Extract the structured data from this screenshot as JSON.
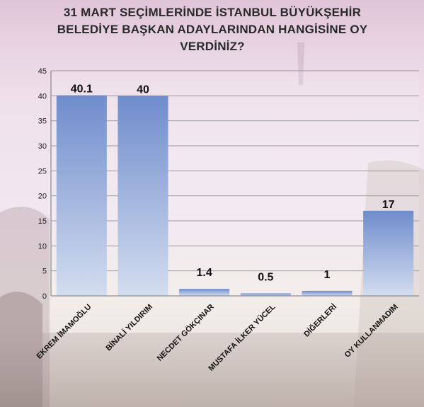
{
  "title_lines": [
    "31 MART SEÇİMLERİNDE İSTANBUL BÜYÜKŞEHİR",
    "BELEDİYE BAŞKAN ADAYLARINDAN HANGİSİNE OY",
    "VERDİNİZ?"
  ],
  "colors": {
    "bar_top": "#6f8ccc",
    "bar_bottom": "#d3ddef",
    "gridline": "#9a9a9a",
    "axis": "#777777"
  },
  "chart_data": {
    "type": "bar",
    "title": "31 MART SEÇİMLERİNDE İSTANBUL BÜYÜKŞEHİR BELEDİYE BAŞKAN ADAYLARINDAN HANGİSİNE OY VERDİNİZ?",
    "categories": [
      "EKREM İMAMOĞLU",
      "BİNALİ YILDIRIM",
      "NECDET GÖKÇINAR",
      "MUSTAFA İLKER YÜCEL",
      "DİĞERLERİ",
      "OY KULLANMADIM"
    ],
    "values": [
      40.1,
      40,
      1.4,
      0.5,
      1,
      17
    ],
    "data_labels": [
      "40.1",
      "40",
      "1.4",
      "0.5",
      "1",
      "17"
    ],
    "ylim": [
      0,
      45
    ],
    "yticks": [
      0,
      5,
      10,
      15,
      20,
      25,
      30,
      35,
      40,
      45
    ],
    "grid": true,
    "xlabel": "",
    "ylabel": ""
  }
}
